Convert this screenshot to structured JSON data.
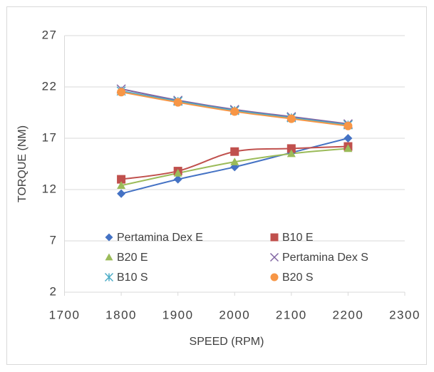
{
  "chart_data": {
    "type": "line",
    "x_label": "SPEED (RPM)",
    "y_label": "TORQUE (NM)",
    "x": [
      1800,
      1900,
      2000,
      2100,
      2200
    ],
    "xlim": [
      1700,
      2300
    ],
    "xticks": [
      1700,
      1800,
      1900,
      2000,
      2100,
      2200,
      2300
    ],
    "ylim": [
      2,
      27
    ],
    "yticks": [
      2,
      7,
      12,
      17,
      22,
      27
    ],
    "grid": true,
    "series": [
      {
        "name": "Pertamina Dex E",
        "color": "#4472c4",
        "marker": "diamond",
        "values": [
          11.6,
          13.0,
          14.2,
          15.6,
          17.0
        ]
      },
      {
        "name": "B10 E",
        "color": "#c0504d",
        "marker": "square",
        "values": [
          13.0,
          13.8,
          15.7,
          16.0,
          16.2
        ]
      },
      {
        "name": "B20 E",
        "color": "#9bbb59",
        "marker": "triangle",
        "values": [
          12.4,
          13.6,
          14.7,
          15.5,
          16.0
        ]
      },
      {
        "name": "Pertamina Dex S",
        "color": "#8064a2",
        "marker": "x",
        "values": [
          21.8,
          20.7,
          19.8,
          19.1,
          18.4
        ]
      },
      {
        "name": "B10 S",
        "color": "#4bacc6",
        "marker": "star",
        "values": [
          21.6,
          20.6,
          19.7,
          19.0,
          18.3
        ]
      },
      {
        "name": "B20 S",
        "color": "#f79646",
        "marker": "circle",
        "values": [
          21.5,
          20.5,
          19.6,
          18.9,
          18.2
        ]
      }
    ]
  }
}
